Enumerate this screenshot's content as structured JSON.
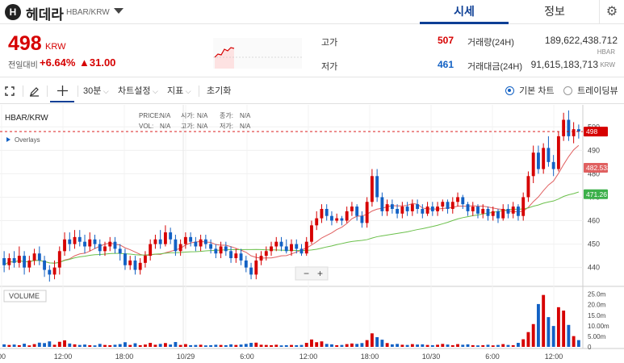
{
  "header": {
    "coin_logo": "H",
    "coin_name": "헤데라",
    "pair": "HBAR/KRW",
    "tabs": [
      {
        "label": "시세",
        "active": true
      },
      {
        "label": "정보",
        "active": false
      }
    ],
    "settings_icon": "gear-icon"
  },
  "price": {
    "value": "498",
    "unit": "KRW",
    "change_label": "전일대비",
    "change_rate": "+6.64%",
    "change_amount": "▲31.00",
    "high_label": "고가",
    "high_value": "507",
    "low_label": "저가",
    "low_value": "461",
    "volume_label": "거래량(24H)",
    "volume_value": "189,622,438.712",
    "volume_unit": "HBAR",
    "amount_label": "거래대금(24H)",
    "amount_value": "91,615,183,713",
    "amount_unit": "KRW",
    "up_color": "#d60000",
    "down_color": "#1261c4"
  },
  "toolbar": {
    "interval": "30분",
    "chart_settings": "차트설정",
    "indicators": "지표",
    "reset": "초기화",
    "basic_chart": "기본 차트",
    "tradingview": "트레이딩뷰"
  },
  "chart_data": {
    "type": "candlestick",
    "symbol": "HBAR/KRW",
    "overlays_label": "Overlays",
    "info_labels": {
      "price": "PRICE:",
      "open": "시가:",
      "high": "고가:",
      "close": "종가:",
      "vol": "VOL:",
      "low": "저가:",
      "na": "N/A"
    },
    "price_axis": {
      "ticks": [
        440,
        450,
        460,
        470,
        480,
        490,
        500
      ],
      "ylim": [
        433,
        508
      ]
    },
    "current_price": 498,
    "ma_short_last": 482.533,
    "ma_long_last": 471.26,
    "volume_label": "VOLUME",
    "volume_axis": {
      "ticks": [
        "25.0m",
        "20.0m",
        "15.0m",
        "10.00m",
        "5.00m",
        "0"
      ],
      "values": [
        25,
        20,
        15,
        10,
        5,
        0
      ],
      "ylim": [
        0,
        26
      ]
    },
    "time_axis": [
      "00",
      "12:00",
      "18:00",
      "10/29",
      "6:00",
      "12:00",
      "18:00",
      "10/30",
      "6:00",
      "12:00"
    ],
    "zoom_minus": "−",
    "zoom_plus": "+",
    "candles": [
      [
        444,
        441,
        447,
        438,
        1.2
      ],
      [
        441,
        444,
        446,
        439,
        0.9
      ],
      [
        444,
        442,
        447,
        440,
        1.1
      ],
      [
        442,
        445,
        449,
        440,
        0.8
      ],
      [
        445,
        440,
        447,
        437,
        1.5
      ],
      [
        440,
        443,
        445,
        438,
        0.7
      ],
      [
        443,
        446,
        448,
        441,
        1.3
      ],
      [
        446,
        443,
        449,
        441,
        2.0
      ],
      [
        443,
        439,
        445,
        436,
        1.8
      ],
      [
        439,
        437,
        441,
        434,
        2.6
      ],
      [
        437,
        440,
        443,
        435,
        1.0
      ],
      [
        440,
        447,
        449,
        437,
        2.4
      ],
      [
        447,
        452,
        455,
        445,
        3.1
      ],
      [
        452,
        450,
        455,
        447,
        1.6
      ],
      [
        450,
        453,
        456,
        448,
        1.2
      ],
      [
        453,
        451,
        456,
        449,
        0.9
      ],
      [
        451,
        449,
        454,
        446,
        1.1
      ],
      [
        449,
        452,
        455,
        447,
        0.8
      ],
      [
        452,
        450,
        454,
        448,
        0.7
      ],
      [
        450,
        447,
        452,
        445,
        1.4
      ],
      [
        447,
        449,
        451,
        445,
        0.9
      ],
      [
        449,
        451,
        453,
        447,
        0.8
      ],
      [
        451,
        448,
        453,
        446,
        1.0
      ],
      [
        448,
        446,
        450,
        443,
        1.3
      ],
      [
        446,
        441,
        448,
        439,
        2.2
      ],
      [
        441,
        443,
        445,
        439,
        0.9
      ],
      [
        443,
        439,
        445,
        437,
        1.7
      ],
      [
        439,
        442,
        444,
        437,
        0.8
      ],
      [
        442,
        445,
        447,
        440,
        1.1
      ],
      [
        445,
        450,
        452,
        443,
        1.9
      ],
      [
        450,
        452,
        454,
        448,
        1.0
      ],
      [
        452,
        450,
        456,
        448,
        1.4
      ],
      [
        450,
        455,
        458,
        449,
        1.8
      ],
      [
        455,
        452,
        457,
        450,
        1.1
      ],
      [
        452,
        447,
        454,
        445,
        2.3
      ],
      [
        447,
        450,
        452,
        445,
        0.9
      ],
      [
        450,
        453,
        455,
        448,
        1.3
      ],
      [
        453,
        451,
        455,
        449,
        0.8
      ],
      [
        451,
        449,
        453,
        447,
        0.9
      ],
      [
        449,
        452,
        454,
        447,
        1.0
      ],
      [
        452,
        450,
        454,
        448,
        0.7
      ],
      [
        450,
        448,
        452,
        446,
        0.8
      ],
      [
        448,
        446,
        450,
        444,
        1.0
      ],
      [
        446,
        449,
        451,
        444,
        0.9
      ],
      [
        449,
        447,
        451,
        445,
        0.8
      ],
      [
        447,
        444,
        449,
        442,
        1.2
      ],
      [
        444,
        446,
        448,
        442,
        0.9
      ],
      [
        446,
        443,
        448,
        441,
        1.1
      ],
      [
        443,
        440,
        445,
        438,
        1.4
      ],
      [
        440,
        437,
        442,
        435,
        1.9
      ],
      [
        437,
        443,
        446,
        435,
        2.0
      ],
      [
        443,
        445,
        447,
        441,
        1.0
      ],
      [
        445,
        447,
        449,
        443,
        0.9
      ],
      [
        447,
        449,
        451,
        445,
        0.8
      ],
      [
        449,
        451,
        453,
        447,
        1.0
      ],
      [
        451,
        449,
        453,
        447,
        0.7
      ],
      [
        449,
        447,
        452,
        446,
        0.8
      ],
      [
        447,
        450,
        452,
        445,
        0.9
      ],
      [
        450,
        448,
        452,
        446,
        0.8
      ],
      [
        448,
        446,
        450,
        445,
        0.9
      ],
      [
        446,
        451,
        453,
        445,
        1.9
      ],
      [
        451,
        458,
        460,
        450,
        3.5
      ],
      [
        458,
        461,
        464,
        456,
        2.2
      ],
      [
        461,
        465,
        467,
        459,
        2.6
      ],
      [
        465,
        462,
        467,
        460,
        1.4
      ],
      [
        462,
        460,
        464,
        458,
        1.2
      ],
      [
        460,
        461,
        463,
        459,
        0.8
      ],
      [
        461,
        460,
        462,
        458,
        0.9
      ],
      [
        460,
        464,
        466,
        459,
        1.3
      ],
      [
        464,
        466,
        468,
        462,
        1.6
      ],
      [
        466,
        462,
        467,
        460,
        1.4
      ],
      [
        462,
        459,
        464,
        457,
        1.8
      ],
      [
        459,
        468,
        470,
        457,
        3.2
      ],
      [
        468,
        479,
        482,
        466,
        6.4
      ],
      [
        479,
        470,
        482,
        468,
        4.6
      ],
      [
        470,
        464,
        472,
        462,
        3.4
      ],
      [
        464,
        467,
        469,
        462,
        1.8
      ],
      [
        467,
        465,
        469,
        463,
        1.2
      ],
      [
        465,
        463,
        467,
        461,
        1.4
      ],
      [
        463,
        466,
        468,
        461,
        1.0
      ],
      [
        466,
        464,
        468,
        462,
        0.9
      ],
      [
        464,
        467,
        469,
        462,
        1.3
      ],
      [
        467,
        465,
        469,
        463,
        1.1
      ],
      [
        465,
        463,
        467,
        461,
        1.2
      ],
      [
        463,
        466,
        468,
        462,
        0.9
      ],
      [
        466,
        464,
        468,
        462,
        0.8
      ],
      [
        464,
        466,
        468,
        462,
        1.0
      ],
      [
        466,
        468,
        469,
        464,
        1.4
      ],
      [
        468,
        465,
        469,
        463,
        1.1
      ],
      [
        465,
        468,
        470,
        463,
        0.8
      ],
      [
        468,
        470,
        472,
        466,
        1.3
      ],
      [
        470,
        467,
        471,
        465,
        1.0
      ],
      [
        467,
        464,
        468,
        462,
        1.2
      ],
      [
        464,
        466,
        468,
        462,
        0.8
      ],
      [
        466,
        463,
        467,
        461,
        0.7
      ],
      [
        463,
        465,
        467,
        461,
        0.8
      ],
      [
        465,
        462,
        466,
        460,
        1.0
      ],
      [
        462,
        464,
        466,
        460,
        0.7
      ],
      [
        464,
        461,
        465,
        459,
        0.9
      ],
      [
        461,
        465,
        467,
        460,
        1.3
      ],
      [
        465,
        463,
        467,
        461,
        0.9
      ],
      [
        463,
        466,
        468,
        461,
        0.8
      ],
      [
        466,
        462,
        467,
        460,
        1.9
      ],
      [
        462,
        470,
        472,
        460,
        3.6
      ],
      [
        470,
        479,
        481,
        468,
        7.0
      ],
      [
        479,
        489,
        492,
        476,
        10.8
      ],
      [
        489,
        482,
        492,
        480,
        20.3
      ],
      [
        482,
        491,
        493,
        480,
        24.6
      ],
      [
        491,
        485,
        496,
        483,
        14.1
      ],
      [
        485,
        482,
        488,
        479,
        9.9
      ],
      [
        482,
        496,
        498,
        481,
        18.8
      ],
      [
        496,
        503,
        506,
        494,
        17.2
      ],
      [
        503,
        496,
        507,
        494,
        10.4
      ],
      [
        496,
        499,
        502,
        493,
        5.1
      ],
      [
        499,
        498,
        501,
        495,
        3.2
      ]
    ]
  }
}
